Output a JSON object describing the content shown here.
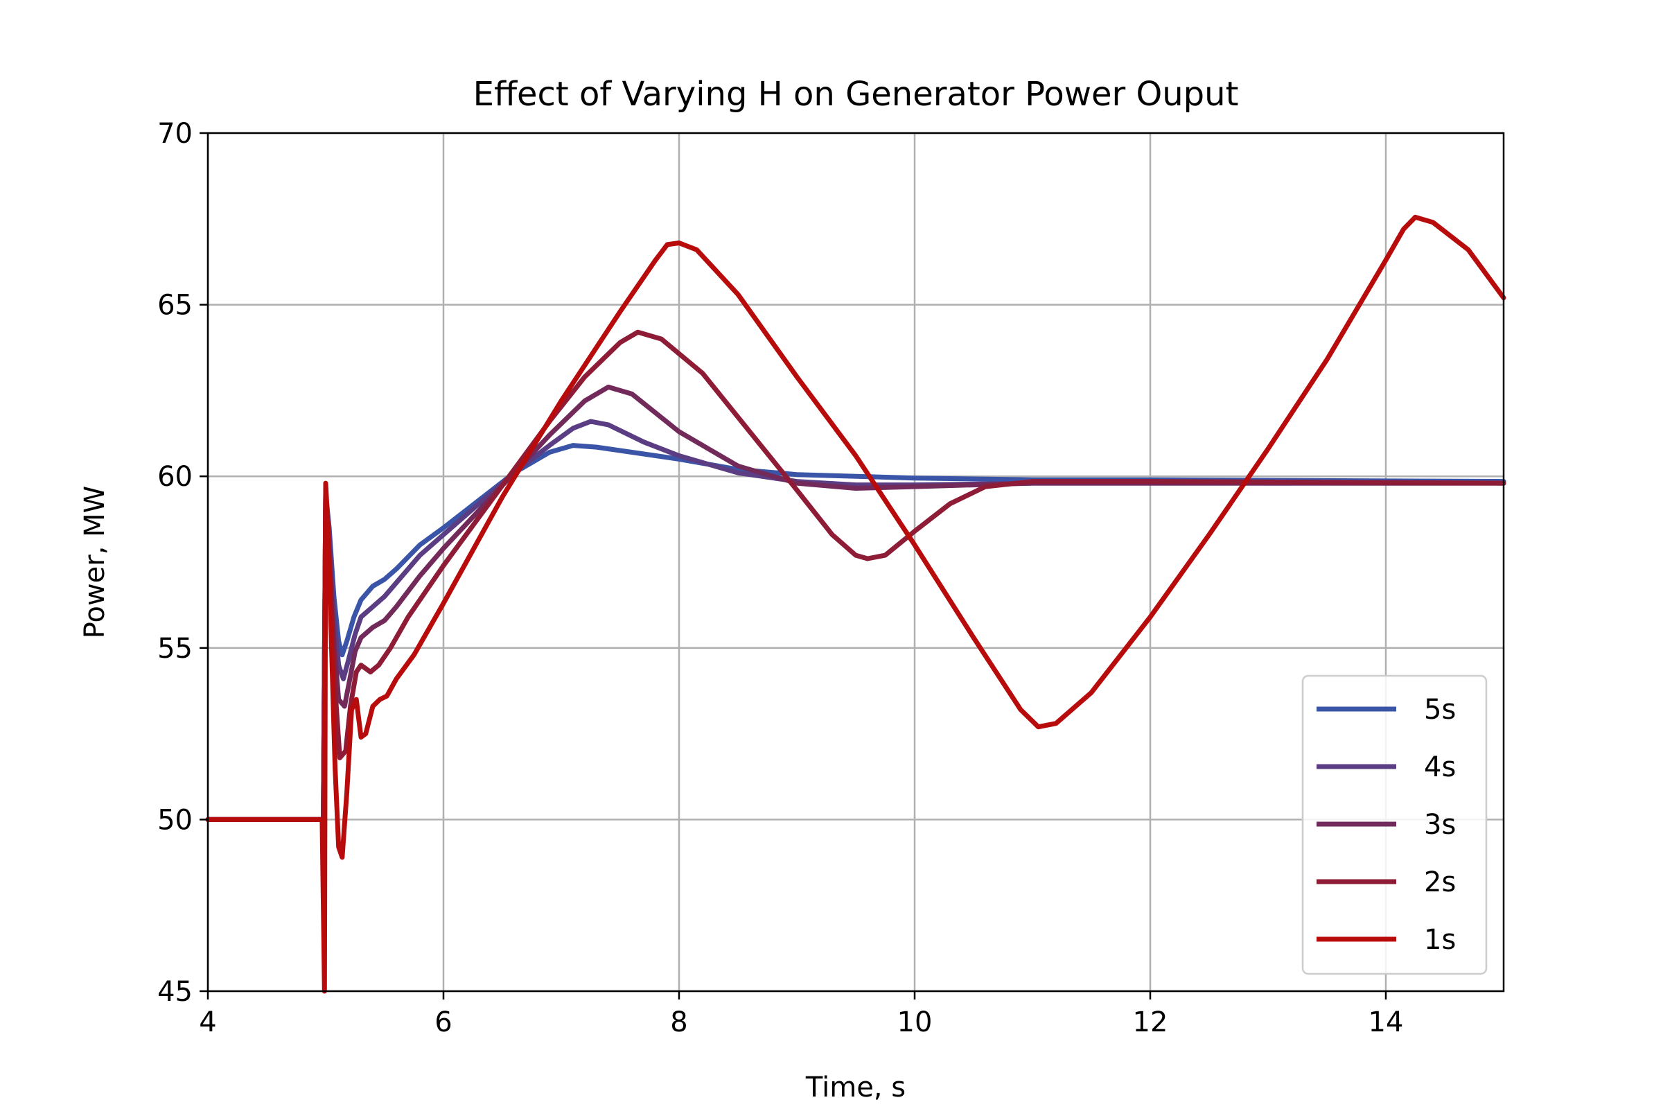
{
  "chart_data": {
    "type": "line",
    "title": "Effect of Varying H on Generator Power Ouput",
    "xlabel": "Time, s",
    "ylabel": "Power, MW",
    "xlim": [
      4,
      15
    ],
    "ylim": [
      45,
      70
    ],
    "xticks": [
      4,
      6,
      8,
      10,
      12,
      14
    ],
    "yticks": [
      45,
      50,
      55,
      60,
      65,
      70
    ],
    "x_tick_labels": [
      "4",
      "6",
      "8",
      "10",
      "12",
      "14"
    ],
    "y_tick_labels": [
      "45",
      "50",
      "55",
      "60",
      "65",
      "70"
    ],
    "grid": true,
    "legend_position": "bottom-right",
    "series": [
      {
        "name": "5s",
        "color": "#3a55a8",
        "points": [
          [
            4,
            50
          ],
          [
            4.95,
            50
          ],
          [
            4.98,
            50
          ],
          [
            5.0,
            59.5
          ],
          [
            5.03,
            58.5
          ],
          [
            5.07,
            56.5
          ],
          [
            5.11,
            55.2
          ],
          [
            5.14,
            54.8
          ],
          [
            5.18,
            55.2
          ],
          [
            5.24,
            55.9
          ],
          [
            5.3,
            56.4
          ],
          [
            5.4,
            56.8
          ],
          [
            5.5,
            57.0
          ],
          [
            5.6,
            57.3
          ],
          [
            5.8,
            58.0
          ],
          [
            6.0,
            58.5
          ],
          [
            6.3,
            59.3
          ],
          [
            6.6,
            60.1
          ],
          [
            6.9,
            60.7
          ],
          [
            7.1,
            60.9
          ],
          [
            7.3,
            60.85
          ],
          [
            7.6,
            60.7
          ],
          [
            8.0,
            60.5
          ],
          [
            8.5,
            60.2
          ],
          [
            9.0,
            60.05
          ],
          [
            10.0,
            59.95
          ],
          [
            11.0,
            59.9
          ],
          [
            12.0,
            59.9
          ],
          [
            15.0,
            59.85
          ]
        ]
      },
      {
        "name": "4s",
        "color": "#5b3d84",
        "points": [
          [
            4,
            50
          ],
          [
            4.95,
            50
          ],
          [
            4.98,
            50
          ],
          [
            5.0,
            59.5
          ],
          [
            5.03,
            58.3
          ],
          [
            5.07,
            56.0
          ],
          [
            5.11,
            54.5
          ],
          [
            5.15,
            54.1
          ],
          [
            5.19,
            54.6
          ],
          [
            5.25,
            55.4
          ],
          [
            5.3,
            55.9
          ],
          [
            5.4,
            56.2
          ],
          [
            5.5,
            56.5
          ],
          [
            5.6,
            56.9
          ],
          [
            5.8,
            57.7
          ],
          [
            6.0,
            58.3
          ],
          [
            6.3,
            59.2
          ],
          [
            6.6,
            60.1
          ],
          [
            6.9,
            60.9
          ],
          [
            7.1,
            61.4
          ],
          [
            7.25,
            61.6
          ],
          [
            7.4,
            61.5
          ],
          [
            7.7,
            61.0
          ],
          [
            8.0,
            60.6
          ],
          [
            8.5,
            60.1
          ],
          [
            9.0,
            59.85
          ],
          [
            9.5,
            59.75
          ],
          [
            10.0,
            59.75
          ],
          [
            11.0,
            59.8
          ],
          [
            15.0,
            59.8
          ]
        ]
      },
      {
        "name": "3s",
        "color": "#722a5b",
        "points": [
          [
            4,
            50
          ],
          [
            4.95,
            50
          ],
          [
            4.98,
            50
          ],
          [
            5.0,
            59.5
          ],
          [
            5.03,
            57.8
          ],
          [
            5.07,
            55.2
          ],
          [
            5.11,
            53.5
          ],
          [
            5.16,
            53.3
          ],
          [
            5.2,
            54.0
          ],
          [
            5.25,
            54.9
          ],
          [
            5.3,
            55.3
          ],
          [
            5.4,
            55.6
          ],
          [
            5.5,
            55.8
          ],
          [
            5.6,
            56.2
          ],
          [
            5.8,
            57.1
          ],
          [
            6.0,
            57.9
          ],
          [
            6.3,
            59.0
          ],
          [
            6.6,
            60.1
          ],
          [
            6.9,
            61.2
          ],
          [
            7.2,
            62.2
          ],
          [
            7.4,
            62.6
          ],
          [
            7.6,
            62.4
          ],
          [
            8.0,
            61.3
          ],
          [
            8.5,
            60.3
          ],
          [
            9.0,
            59.8
          ],
          [
            9.5,
            59.65
          ],
          [
            10.0,
            59.7
          ],
          [
            11.0,
            59.8
          ],
          [
            15.0,
            59.8
          ]
        ]
      },
      {
        "name": "2s",
        "color": "#8f1c36",
        "points": [
          [
            4,
            50
          ],
          [
            4.95,
            50
          ],
          [
            4.98,
            50
          ],
          [
            5.0,
            59.5
          ],
          [
            5.04,
            57.0
          ],
          [
            5.08,
            53.8
          ],
          [
            5.12,
            51.8
          ],
          [
            5.17,
            52.0
          ],
          [
            5.21,
            53.3
          ],
          [
            5.26,
            54.3
          ],
          [
            5.3,
            54.5
          ],
          [
            5.38,
            54.3
          ],
          [
            5.45,
            54.5
          ],
          [
            5.55,
            55.0
          ],
          [
            5.7,
            55.9
          ],
          [
            6.0,
            57.4
          ],
          [
            6.3,
            58.8
          ],
          [
            6.6,
            60.2
          ],
          [
            6.9,
            61.6
          ],
          [
            7.2,
            62.9
          ],
          [
            7.5,
            63.9
          ],
          [
            7.65,
            64.2
          ],
          [
            7.85,
            64.0
          ],
          [
            8.2,
            63.0
          ],
          [
            8.6,
            61.3
          ],
          [
            9.0,
            59.6
          ],
          [
            9.3,
            58.3
          ],
          [
            9.5,
            57.7
          ],
          [
            9.6,
            57.6
          ],
          [
            9.75,
            57.7
          ],
          [
            10.0,
            58.4
          ],
          [
            10.3,
            59.2
          ],
          [
            10.6,
            59.7
          ],
          [
            11.0,
            59.85
          ],
          [
            12.0,
            59.85
          ],
          [
            15.0,
            59.8
          ]
        ]
      },
      {
        "name": "1s",
        "color": "#b80c0c",
        "points": [
          [
            4,
            50
          ],
          [
            4.94,
            50
          ],
          [
            4.97,
            50
          ],
          [
            4.99,
            45.0
          ],
          [
            5.0,
            59.8
          ],
          [
            5.02,
            58.5
          ],
          [
            5.05,
            55.0
          ],
          [
            5.08,
            51.5
          ],
          [
            5.11,
            49.2
          ],
          [
            5.14,
            48.9
          ],
          [
            5.18,
            50.8
          ],
          [
            5.22,
            53.2
          ],
          [
            5.26,
            53.5
          ],
          [
            5.3,
            52.4
          ],
          [
            5.34,
            52.5
          ],
          [
            5.4,
            53.3
          ],
          [
            5.46,
            53.5
          ],
          [
            5.52,
            53.6
          ],
          [
            5.6,
            54.1
          ],
          [
            5.75,
            54.8
          ],
          [
            6.0,
            56.3
          ],
          [
            6.5,
            59.4
          ],
          [
            7.0,
            62.2
          ],
          [
            7.5,
            64.8
          ],
          [
            7.8,
            66.3
          ],
          [
            7.9,
            66.75
          ],
          [
            8.0,
            66.8
          ],
          [
            8.15,
            66.6
          ],
          [
            8.5,
            65.3
          ],
          [
            9.0,
            62.9
          ],
          [
            9.5,
            60.6
          ],
          [
            10.0,
            58.0
          ],
          [
            10.5,
            55.3
          ],
          [
            10.9,
            53.2
          ],
          [
            11.05,
            52.7
          ],
          [
            11.2,
            52.8
          ],
          [
            11.5,
            53.7
          ],
          [
            12.0,
            55.9
          ],
          [
            12.5,
            58.3
          ],
          [
            13.0,
            60.8
          ],
          [
            13.5,
            63.4
          ],
          [
            14.0,
            66.3
          ],
          [
            14.15,
            67.2
          ],
          [
            14.25,
            67.55
          ],
          [
            14.4,
            67.4
          ],
          [
            14.7,
            66.6
          ],
          [
            15.0,
            65.2
          ]
        ]
      }
    ]
  }
}
